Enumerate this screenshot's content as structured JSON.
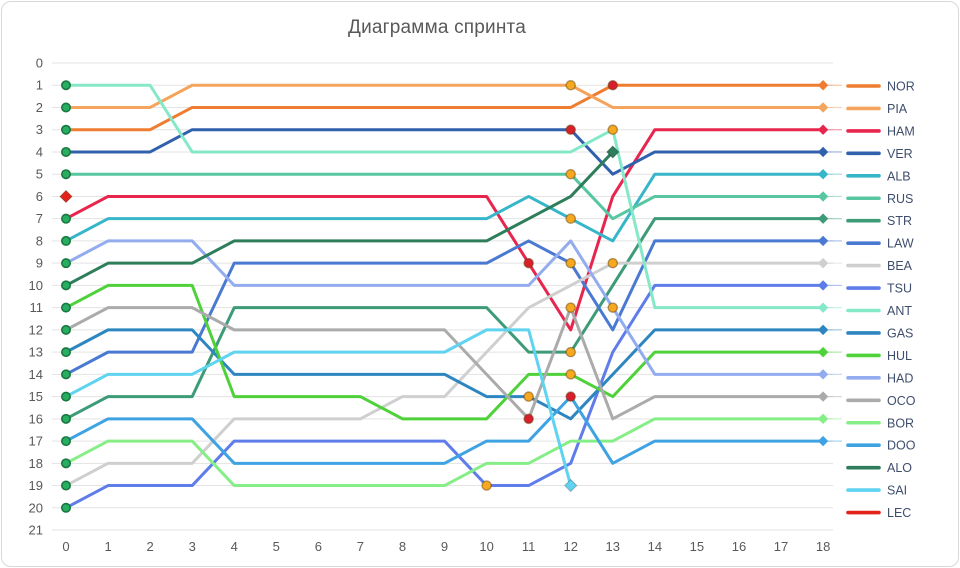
{
  "title": "Диаграмма спринта",
  "chart_data": {
    "type": "line",
    "subtype": "bump-chart-race-positions",
    "title": "Диаграмма спринта",
    "xlabel": "",
    "ylabel": "",
    "x_ticks": [
      0,
      1,
      2,
      3,
      4,
      5,
      6,
      7,
      8,
      9,
      10,
      11,
      12,
      13,
      14,
      15,
      16,
      17,
      18
    ],
    "y_ticks": [
      0,
      1,
      2,
      3,
      4,
      5,
      6,
      7,
      8,
      9,
      10,
      11,
      12,
      13,
      14,
      15,
      16,
      17,
      18,
      19,
      20,
      21
    ],
    "y_axis_inverted": true,
    "ylim": [
      0,
      21
    ],
    "xlim": [
      0,
      18
    ],
    "grid": "horizontal",
    "legend_position": "right",
    "axis_label_color": "#595959",
    "grid_color": "#e3e3e3",
    "legend_text_color": "#3f4e6e",
    "series": [
      {
        "name": "NOR",
        "color": "#ee7d31",
        "positions": [
          3,
          3,
          3,
          2,
          2,
          2,
          2,
          2,
          2,
          2,
          2,
          2,
          2,
          1,
          1,
          1,
          1,
          1,
          1
        ]
      },
      {
        "name": "PIA",
        "color": "#f4a45c",
        "positions": [
          2,
          2,
          2,
          1,
          1,
          1,
          1,
          1,
          1,
          1,
          1,
          1,
          1,
          2,
          2,
          2,
          2,
          2,
          2
        ]
      },
      {
        "name": "HAM",
        "color": "#e8254d",
        "positions": [
          7,
          6,
          6,
          6,
          6,
          6,
          6,
          6,
          6,
          6,
          6,
          9,
          12,
          6,
          3,
          3,
          3,
          3,
          3
        ]
      },
      {
        "name": "VER",
        "color": "#3161ad",
        "positions": [
          4,
          4,
          4,
          3,
          3,
          3,
          3,
          3,
          3,
          3,
          3,
          3,
          3,
          5,
          4,
          4,
          4,
          4,
          4
        ]
      },
      {
        "name": "ALB",
        "color": "#38b6c9",
        "positions": [
          8,
          7,
          7,
          7,
          7,
          7,
          7,
          7,
          7,
          7,
          7,
          6,
          7,
          8,
          5,
          5,
          5,
          5,
          5
        ]
      },
      {
        "name": "RUS",
        "color": "#57c6a1",
        "positions": [
          5,
          5,
          5,
          5,
          5,
          5,
          5,
          5,
          5,
          5,
          5,
          5,
          5,
          7,
          6,
          6,
          6,
          6,
          6
        ]
      },
      {
        "name": "STR",
        "color": "#3d9b77",
        "positions": [
          16,
          15,
          15,
          15,
          11,
          11,
          11,
          11,
          11,
          11,
          11,
          13,
          13,
          10,
          7,
          7,
          7,
          7,
          7
        ]
      },
      {
        "name": "LAW",
        "color": "#4979d1",
        "positions": [
          14,
          13,
          13,
          13,
          9,
          9,
          9,
          9,
          9,
          9,
          9,
          8,
          9,
          12,
          8,
          8,
          8,
          8,
          8
        ]
      },
      {
        "name": "BEA",
        "color": "#cfcfcf",
        "positions": [
          19,
          18,
          18,
          18,
          16,
          16,
          16,
          16,
          15,
          15,
          13,
          11,
          10,
          9,
          9,
          9,
          9,
          9,
          9
        ]
      },
      {
        "name": "TSU",
        "color": "#5f7dea",
        "positions": [
          20,
          19,
          19,
          19,
          17,
          17,
          17,
          17,
          17,
          17,
          19,
          19,
          18,
          13,
          10,
          10,
          10,
          10,
          10
        ]
      },
      {
        "name": "ANT",
        "color": "#85e8c8",
        "positions": [
          1,
          1,
          1,
          4,
          4,
          4,
          4,
          4,
          4,
          4,
          4,
          4,
          4,
          3,
          11,
          11,
          11,
          11,
          11
        ]
      },
      {
        "name": "GAS",
        "color": "#2e86c1",
        "positions": [
          13,
          12,
          12,
          12,
          14,
          14,
          14,
          14,
          14,
          14,
          15,
          15,
          16,
          14,
          12,
          12,
          12,
          12,
          12
        ]
      },
      {
        "name": "HUL",
        "color": "#4fd13a",
        "positions": [
          11,
          10,
          10,
          10,
          15,
          15,
          15,
          15,
          16,
          16,
          16,
          14,
          14,
          15,
          13,
          13,
          13,
          13,
          13
        ]
      },
      {
        "name": "HAD",
        "color": "#93acf0",
        "positions": [
          9,
          8,
          8,
          8,
          10,
          10,
          10,
          10,
          10,
          10,
          10,
          10,
          8,
          11,
          14,
          14,
          14,
          14,
          14
        ]
      },
      {
        "name": "OCO",
        "color": "#ababab",
        "positions": [
          12,
          11,
          11,
          11,
          12,
          12,
          12,
          12,
          12,
          12,
          14,
          16,
          11,
          16,
          15,
          15,
          15,
          15,
          15
        ]
      },
      {
        "name": "BOR",
        "color": "#86ee86",
        "positions": [
          18,
          17,
          17,
          17,
          19,
          19,
          19,
          19,
          19,
          19,
          18,
          18,
          17,
          17,
          16,
          16,
          16,
          16,
          16
        ]
      },
      {
        "name": "DOO",
        "color": "#3fa3e3",
        "positions": [
          17,
          16,
          16,
          16,
          18,
          18,
          18,
          18,
          18,
          18,
          17,
          17,
          15,
          18,
          17,
          17,
          17,
          17,
          17
        ]
      },
      {
        "name": "ALO",
        "color": "#2e7d5b",
        "positions": [
          10,
          9,
          9,
          9,
          8,
          8,
          8,
          8,
          8,
          8,
          8,
          7,
          6,
          4,
          null,
          null,
          null,
          null,
          null
        ]
      },
      {
        "name": "SAI",
        "color": "#5fd3f0",
        "positions": [
          15,
          14,
          14,
          14,
          13,
          13,
          13,
          13,
          13,
          13,
          12,
          12,
          19,
          null,
          null,
          null,
          null,
          null,
          null
        ]
      },
      {
        "name": "LEC",
        "color": "#e2231a",
        "positions": [
          6,
          null,
          null,
          null,
          null,
          null,
          null,
          null,
          null,
          null,
          null,
          null,
          null,
          null,
          null,
          null,
          null,
          null,
          null
        ]
      }
    ],
    "start_markers": {
      "lap": 0,
      "fill": "#27ae60",
      "stroke": "#1b7742"
    },
    "pit_stops": [
      {
        "driver": "TSU",
        "lap": 10,
        "pos": 19,
        "color": "#f6a821"
      },
      {
        "driver": "HAM",
        "lap": 11,
        "pos": 9,
        "color": "#d91f2e"
      },
      {
        "driver": "GAS",
        "lap": 11,
        "pos": 15,
        "color": "#f6a821"
      },
      {
        "driver": "OCO",
        "lap": 11,
        "pos": 16,
        "color": "#d91f2e"
      },
      {
        "driver": "PIA",
        "lap": 12,
        "pos": 1,
        "color": "#f6a821"
      },
      {
        "driver": "VER",
        "lap": 12,
        "pos": 3,
        "color": "#d91f2e"
      },
      {
        "driver": "RUS",
        "lap": 12,
        "pos": 5,
        "color": "#f6a821"
      },
      {
        "driver": "ALB",
        "lap": 12,
        "pos": 7,
        "color": "#f6a821"
      },
      {
        "driver": "LAW",
        "lap": 12,
        "pos": 9,
        "color": "#f6a821"
      },
      {
        "driver": "OCO",
        "lap": 12,
        "pos": 11,
        "color": "#f6a821"
      },
      {
        "driver": "STR",
        "lap": 12,
        "pos": 13,
        "color": "#f6a821"
      },
      {
        "driver": "HUL",
        "lap": 12,
        "pos": 14,
        "color": "#f6a821"
      },
      {
        "driver": "DOO",
        "lap": 12,
        "pos": 15,
        "color": "#d91f2e"
      },
      {
        "driver": "NOR",
        "lap": 13,
        "pos": 1,
        "color": "#d91f2e"
      },
      {
        "driver": "ANT",
        "lap": 13,
        "pos": 3,
        "color": "#f6a821"
      },
      {
        "driver": "BEA",
        "lap": 13,
        "pos": 9,
        "color": "#f6a821"
      },
      {
        "driver": "HAD",
        "lap": 13,
        "pos": 11,
        "color": "#f6a821"
      }
    ],
    "retirements": [
      {
        "driver": "LEC",
        "lap": 0,
        "pos": 6
      },
      {
        "driver": "SAI",
        "lap": 12,
        "pos": 19
      },
      {
        "driver": "ALO",
        "lap": 13,
        "pos": 4
      }
    ],
    "finish_lap": 18
  }
}
